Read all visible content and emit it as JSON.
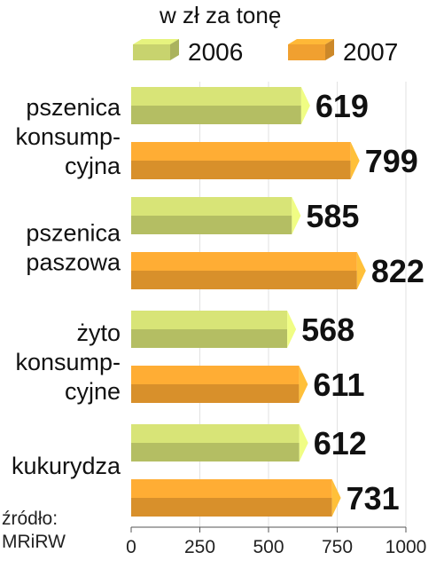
{
  "chart_data": {
    "type": "bar",
    "orientation": "horizontal",
    "unit_label": "w zł za tonę",
    "categories": [
      [
        "pszenica",
        "konsump-",
        "cyjna"
      ],
      [
        "pszenica",
        "paszowa"
      ],
      [
        "żyto",
        "konsump-",
        "cyjne"
      ],
      [
        "kukurydza"
      ]
    ],
    "series": [
      {
        "name": "2006",
        "color": "#c8d36e",
        "values": [
          619,
          585,
          568,
          612
        ]
      },
      {
        "name": "2007",
        "color": "#f0a030",
        "values": [
          799,
          822,
          611,
          731
        ]
      }
    ],
    "xlim": [
      0,
      1000
    ],
    "xticks": [
      0,
      250,
      500,
      750,
      1000
    ],
    "legend_position": "top",
    "source": [
      "źródło:",
      "MRiRW"
    ]
  }
}
